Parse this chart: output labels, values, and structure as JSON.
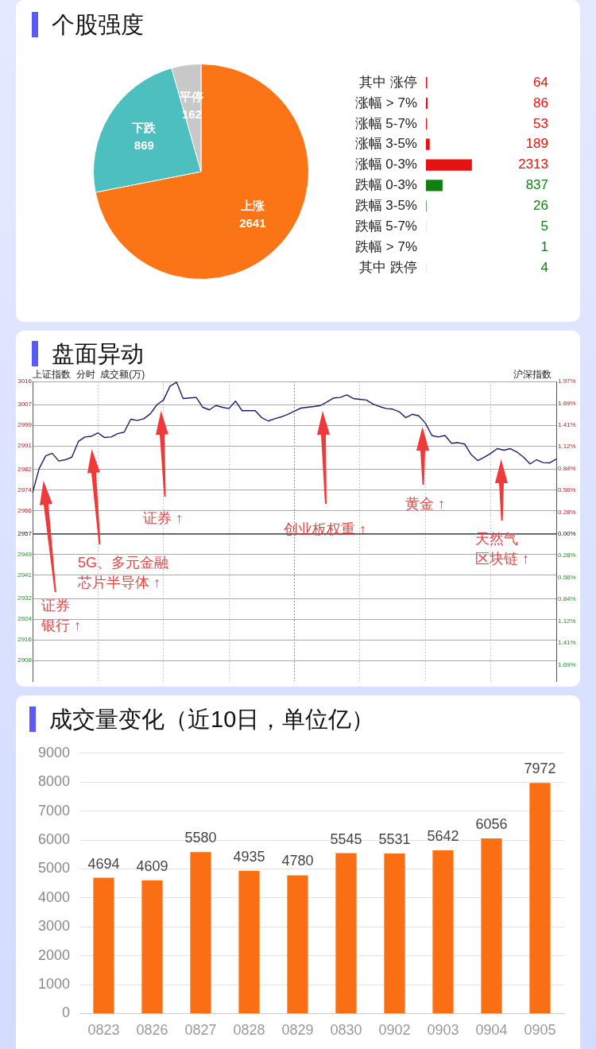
{
  "chart_data": [
    {
      "type": "pie",
      "title": "个股强度",
      "categories": [
        "上涨",
        "下跌",
        "平停"
      ],
      "values": [
        2641,
        869,
        162
      ],
      "colors": [
        "#fb7415",
        "#4dbfbf",
        "#c8c8c8"
      ],
      "data_labels": true
    },
    {
      "type": "bar",
      "orientation": "horizontal",
      "categories": [
        "其中 涨停",
        "涨幅 > 7%",
        "涨幅 5-7%",
        "涨幅 3-5%",
        "涨幅 0-3%",
        "跌幅 0-3%",
        "跌幅 3-5%",
        "跌幅 5-7%",
        "跌幅 > 7%",
        "其中 跌停"
      ],
      "values": [
        64,
        86,
        53,
        189,
        2313,
        837,
        26,
        5,
        1,
        4
      ],
      "colors": [
        "#e81010",
        "#e81010",
        "#e81010",
        "#e81010",
        "#e81010",
        "#108010",
        "#108010",
        "#108010",
        "#108010",
        "#108010"
      ],
      "data_labels": true
    },
    {
      "type": "line",
      "title": "盘面异动",
      "subtitle": "上证指数  分时  成交额(万)",
      "y2label": "沪深指数",
      "categories": [
        null,
        null,
        null,
        null,
        null,
        null,
        null,
        null,
        null,
        null,
        null,
        null,
        null,
        null,
        null,
        null,
        null,
        null,
        null,
        null,
        null,
        null,
        null,
        null,
        null,
        null,
        null,
        null,
        null,
        null,
        null,
        null,
        null,
        null,
        null,
        null,
        null,
        null,
        null,
        null,
        null,
        null,
        null,
        null,
        null,
        null,
        null,
        null,
        null,
        null,
        null,
        null,
        null,
        null,
        null,
        null,
        null,
        null,
        null,
        null,
        null,
        null,
        null,
        null,
        null,
        null,
        null,
        null,
        null,
        null,
        null,
        null,
        null,
        null,
        null,
        null,
        null,
        null,
        null,
        null,
        null
      ],
      "series": [
        {
          "color": "#1c1c6e",
          "values": [
            2972.9,
            2982.3,
            2987.2,
            2988.2,
            2985.2,
            2985.7,
            2986.7,
            2992.8,
            2994.5,
            2994.8,
            2996.1,
            2994.3,
            2994.5,
            2995.8,
            2996.4,
            3001.4,
            3000.9,
            3001.6,
            3003.5,
            3007.0,
            3008.8,
            3014.2,
            3015.7,
            3009.4,
            3009.6,
            3009.8,
            3006.0,
            3005.0,
            3006.7,
            3006.0,
            3005.5,
            3008.4,
            3004.7,
            3004.7,
            3004.7,
            3002.0,
            3000.7,
            3001.6,
            3002.3,
            3003.3,
            3004.5,
            3005.7,
            3006.0,
            3006.3,
            3006.7,
            3008.1,
            3009.6,
            3009.8,
            3010.8,
            3009.4,
            3009.1,
            3008.8,
            3007.3,
            3006.3,
            3005.5,
            3005.3,
            3004.3,
            3002.0,
            3003.3,
            3002.7,
            2999.9,
            2995.1,
            2994.5,
            2995.1,
            2992.1,
            2992.3,
            2991.8,
            2987.7,
            2985.4,
            2986.7,
            2988.2,
            2990.0,
            2989.4,
            2990.0,
            2988.7,
            2986.7,
            2984.1,
            2985.7,
            2984.6,
            2984.5,
            2986.0
          ]
        }
      ],
      "ylim": [
        2900,
        3016
      ],
      "yticks": [
        2908,
        2916,
        2924,
        2932,
        2941,
        2949,
        2957,
        2966,
        2974,
        2982,
        2991,
        2999,
        3007,
        3016
      ],
      "y2lim": [
        -1.901,
        1.968
      ],
      "y2ticks": [
        {
          "value": -1.687,
          "label": "1.69%"
        },
        {
          "value": -1.406,
          "label": "1.41%"
        },
        {
          "value": -1.124,
          "label": "1.12%"
        },
        {
          "value": -0.843,
          "label": "0.84%"
        },
        {
          "value": -0.562,
          "label": "0.56%"
        },
        {
          "value": -0.281,
          "label": "0.28%"
        },
        {
          "value": 0,
          "label": "0.00%"
        },
        {
          "value": 0.281,
          "label": "0.28%"
        },
        {
          "value": 0.562,
          "label": "0.56%"
        },
        {
          "value": 0.843,
          "label": "0.84%"
        },
        {
          "value": 1.124,
          "label": "1.12%"
        },
        {
          "value": 1.406,
          "label": "1.41%"
        },
        {
          "value": 1.687,
          "label": "1.69%"
        },
        {
          "value": 1.968,
          "label": "1.97%"
        }
      ],
      "ref_lines": [
        {
          "axis": "y",
          "value": 2957,
          "color": "#555555"
        }
      ],
      "annotations": [
        "证券银行 ↑",
        "5G、多元金融芯片半导体 ↑",
        "证券 ↑",
        "创业板权重 ↑",
        "黄金 ↑",
        "天然气区块链 ↑"
      ],
      "grid": true,
      "tick_labels": "y"
    },
    {
      "type": "bar",
      "title": "成交量变化（近10日，单位亿）",
      "categories": [
        "0823",
        "0826",
        "0827",
        "0828",
        "0829",
        "0830",
        "0902",
        "0903",
        "0904",
        "0905"
      ],
      "values": [
        4694,
        4609,
        5580,
        4935,
        4780,
        5545,
        5531,
        5642,
        6056,
        7972
      ],
      "color": "#fa6e14",
      "ylim": [
        0,
        9000
      ],
      "yticks": [
        0,
        1000,
        2000,
        3000,
        4000,
        5000,
        6000,
        7000,
        8000,
        9000
      ],
      "grid": "y",
      "data_labels": true
    }
  ]
}
